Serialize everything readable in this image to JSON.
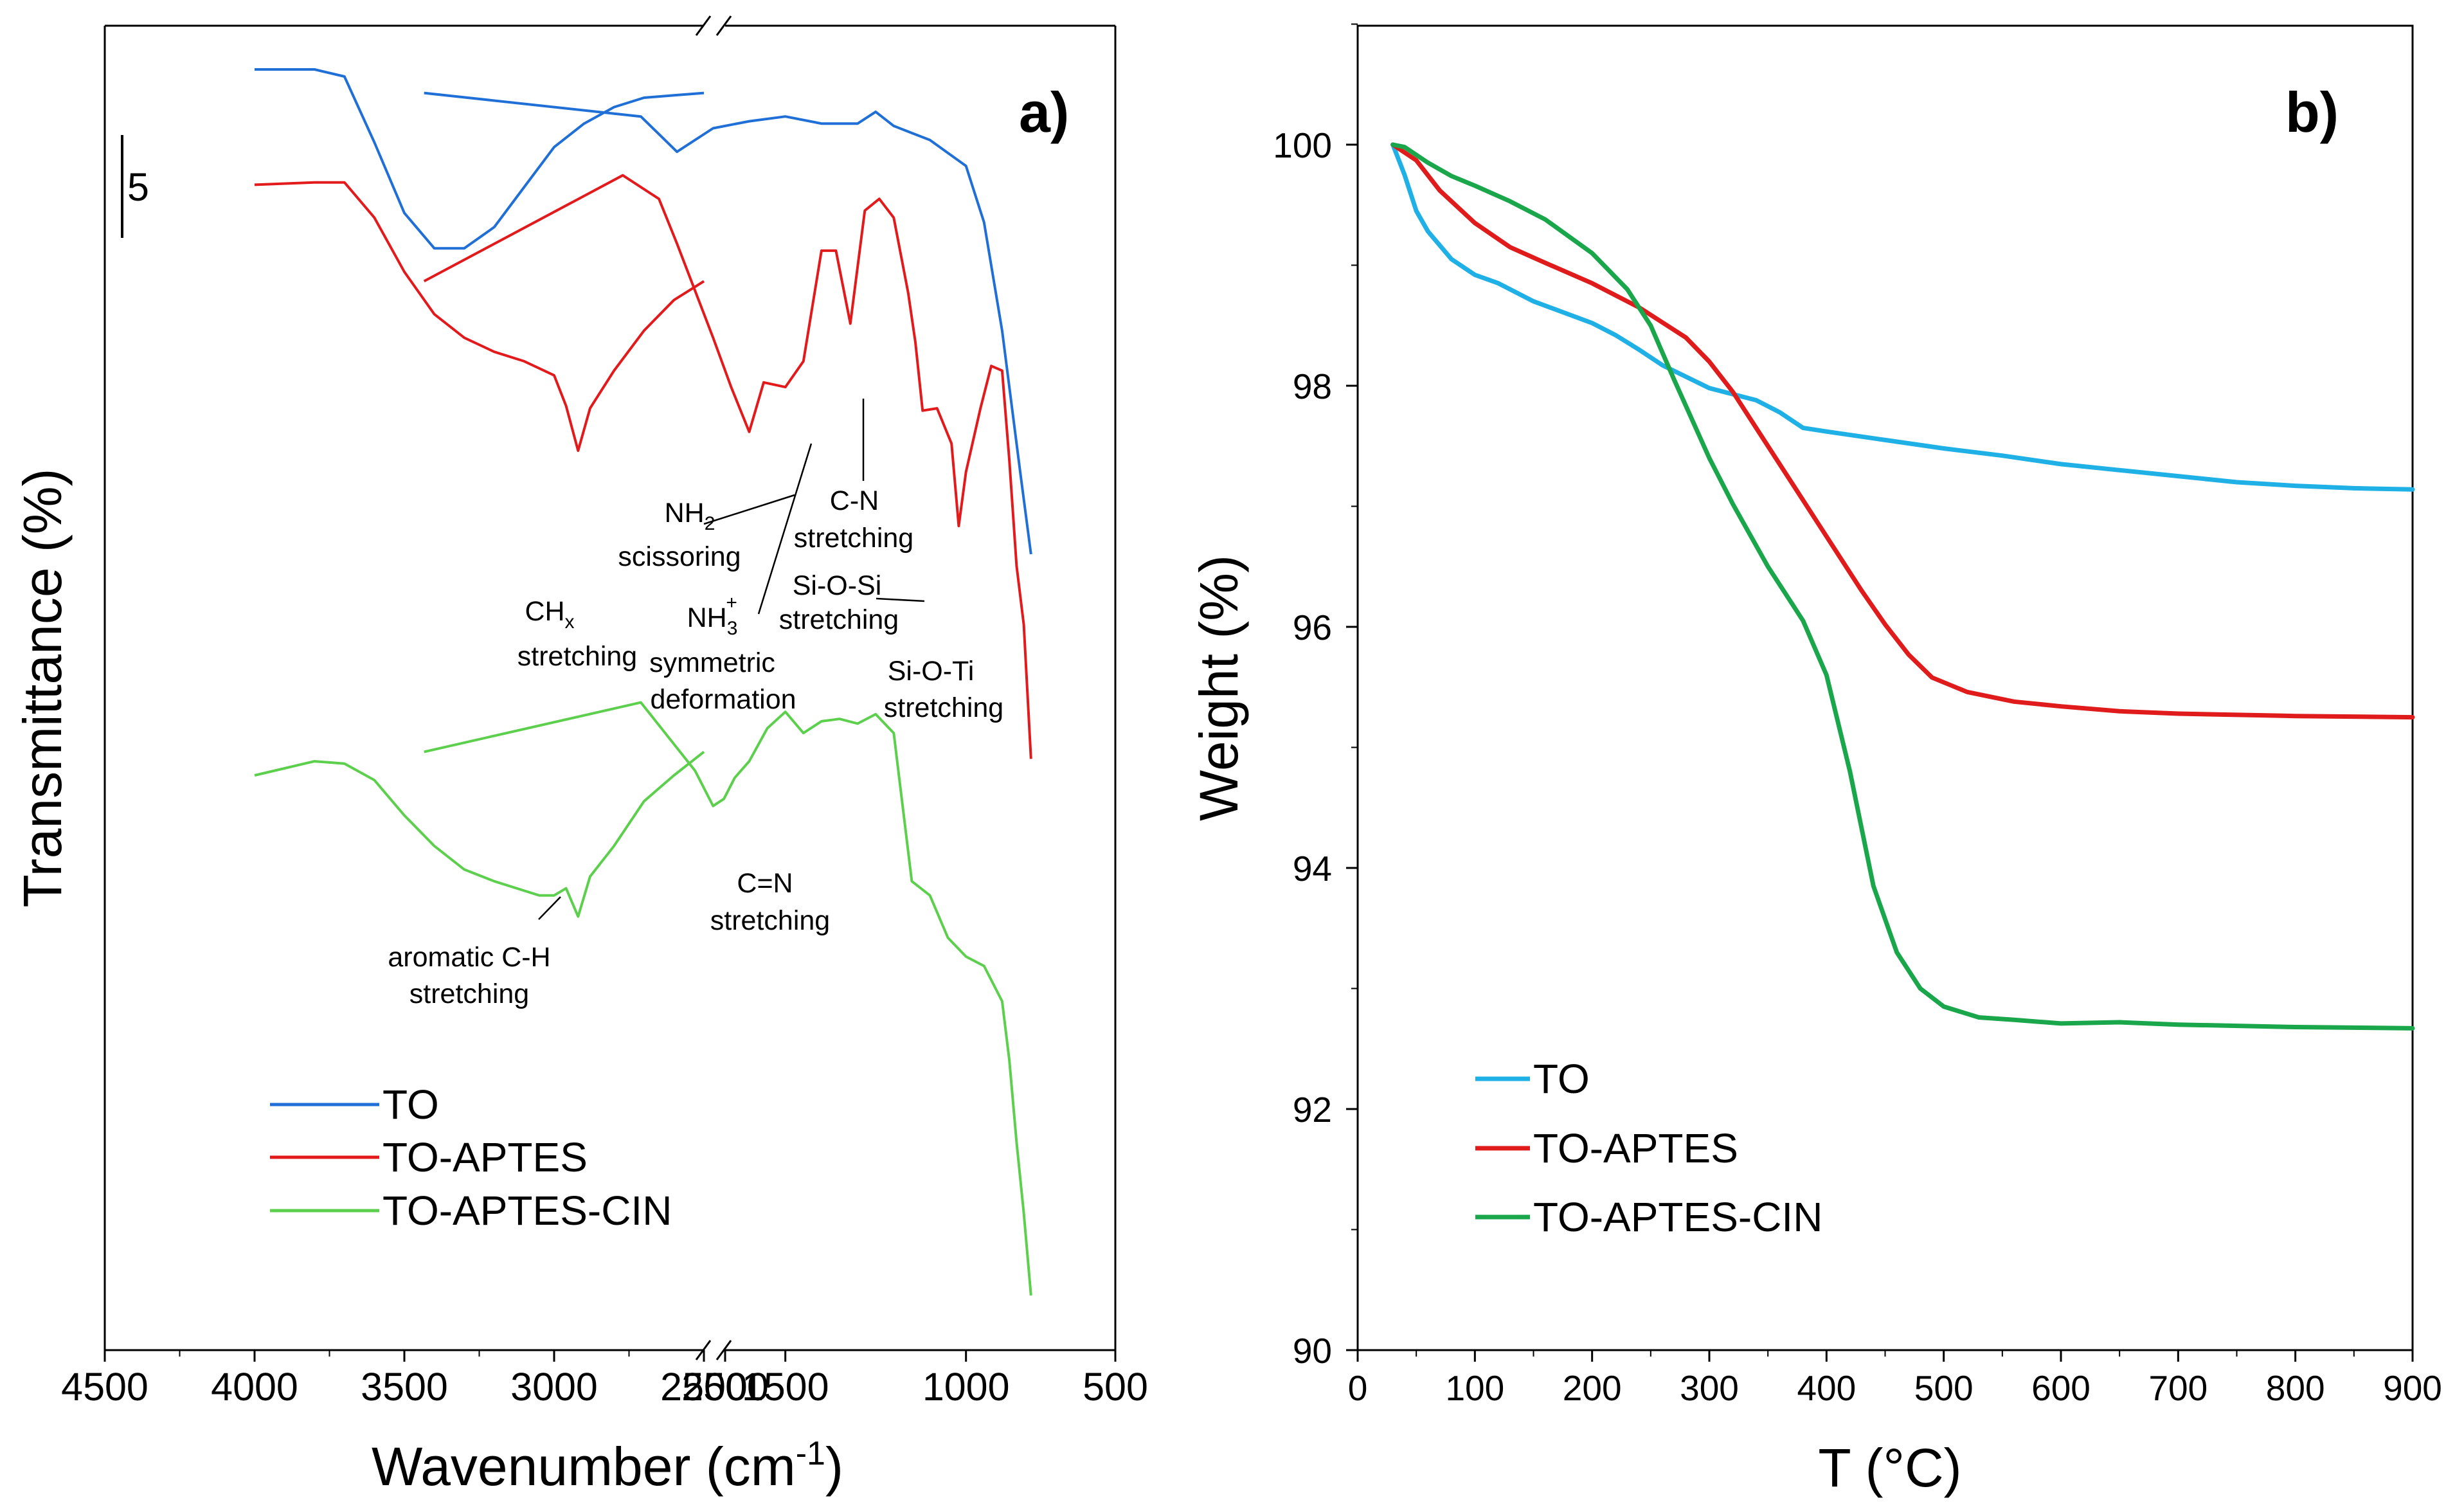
{
  "figure": {
    "panel_a_label": "a)",
    "panel_b_label": "b)"
  },
  "chart_data": [
    {
      "panel": "a",
      "type": "line",
      "title": "",
      "xlabel": "Wavenumber (cm",
      "xlabel_sup": "-1",
      "xlabel_end": ")",
      "ylabel": "Transmittance (%)",
      "x_reversed": true,
      "x_break": true,
      "x_ranges": [
        [
          4500,
          2500
        ],
        [
          2500,
          500
        ]
      ],
      "x_ticks": [
        "4500",
        "4000",
        "3500",
        "3000",
        "2500",
        "2500",
        "1500",
        "1000",
        "500"
      ],
      "scale_bar_label": "5",
      "series": [
        {
          "name": "TO",
          "color": "#1f6fd6",
          "x": [
            4000,
            3800,
            3700,
            3600,
            3500,
            3400,
            3300,
            3200,
            3100,
            3000,
            2900,
            2800,
            2700,
            2600,
            2500,
            2500,
            1900,
            1800,
            1700,
            1600,
            1500,
            1400,
            1300,
            1250,
            1200,
            1150,
            1100,
            1000,
            950,
            900,
            850,
            820
          ],
          "y": [
            50.6,
            50.6,
            50.3,
            47.5,
            44.5,
            43.0,
            43.0,
            43.9,
            45.6,
            47.3,
            48.3,
            49.0,
            49.4,
            49.5,
            49.6,
            49.6,
            48.6,
            47.1,
            48.1,
            48.4,
            48.6,
            48.3,
            48.3,
            48.8,
            48.2,
            47.9,
            47.6,
            46.5,
            44.1,
            39.5,
            33.5,
            30.0
          ]
        },
        {
          "name": "TO-APTES",
          "color": "#e31a1c",
          "x": [
            4000,
            3800,
            3700,
            3600,
            3500,
            3400,
            3300,
            3200,
            3100,
            3000,
            2960,
            2920,
            2880,
            2860,
            2800,
            2700,
            2600,
            2500,
            2500,
            1950,
            1850,
            1800,
            1700,
            1650,
            1600,
            1560,
            1500,
            1450,
            1400,
            1360,
            1320,
            1280,
            1240,
            1200,
            1160,
            1140,
            1120,
            1080,
            1040,
            1020,
            1000,
            960,
            930,
            900,
            880,
            860,
            840,
            820
          ],
          "y": [
            45.7,
            45.8,
            45.8,
            44.3,
            42.0,
            40.2,
            39.2,
            38.6,
            38.2,
            37.6,
            36.3,
            34.4,
            36.2,
            36.6,
            37.8,
            39.5,
            40.8,
            41.6,
            41.6,
            46.1,
            45.1,
            43.2,
            39.2,
            37.1,
            35.2,
            37.3,
            37.1,
            38.2,
            42.9,
            42.9,
            39.8,
            44.6,
            45.1,
            44.3,
            41.1,
            39.0,
            36.1,
            36.2,
            34.7,
            31.2,
            33.5,
            36.2,
            38.0,
            37.8,
            34.0,
            29.5,
            27.0,
            21.3
          ]
        },
        {
          "name": "TO-APTES-CIN",
          "color": "#5ccf4c",
          "x": [
            4000,
            3800,
            3700,
            3600,
            3500,
            3400,
            3300,
            3200,
            3100,
            3050,
            3000,
            2960,
            2920,
            2880,
            2800,
            2700,
            2600,
            2500,
            2500,
            1900,
            1750,
            1700,
            1670,
            1640,
            1600,
            1550,
            1500,
            1450,
            1400,
            1350,
            1300,
            1250,
            1200,
            1150,
            1100,
            1050,
            1000,
            950,
            900,
            880,
            860,
            840,
            820
          ],
          "y": [
            20.6,
            21.2,
            21.1,
            20.4,
            18.9,
            17.6,
            16.6,
            16.1,
            15.7,
            15.5,
            15.5,
            15.8,
            14.6,
            16.3,
            17.6,
            19.5,
            20.6,
            21.6,
            21.6,
            23.7,
            20.8,
            19.3,
            19.6,
            20.5,
            21.2,
            22.6,
            23.3,
            22.4,
            22.9,
            23.0,
            22.8,
            23.2,
            22.4,
            16.1,
            15.5,
            13.7,
            12.9,
            12.5,
            11.0,
            8.5,
            5.0,
            2.0,
            -1.5
          ]
        }
      ],
      "annotations": [
        {
          "text": [
            "CH",
            "x",
            " stretching"
          ],
          "id": "chx"
        },
        {
          "text": [
            "NH",
            "2",
            "scissoring"
          ],
          "id": "nh2"
        },
        {
          "text": [
            "C-N",
            "stretching"
          ],
          "id": "cn"
        },
        {
          "text": [
            "NH",
            "3",
            "+",
            "symmetric",
            "deformation"
          ],
          "id": "nh3"
        },
        {
          "text": [
            "Si-O-Si",
            "stretching"
          ],
          "id": "siosi"
        },
        {
          "text": [
            "Si-O-Ti",
            "stretching"
          ],
          "id": "sioti"
        },
        {
          "text": [
            "C=N",
            "stretching"
          ],
          "id": "cen"
        },
        {
          "text": [
            "aromatic C-H",
            "stretching"
          ],
          "id": "arch"
        }
      ]
    },
    {
      "panel": "b",
      "type": "line",
      "title": "",
      "xlabel": "T (°C)",
      "ylabel": "Weight (%)",
      "xlim": [
        0,
        900
      ],
      "ylim": [
        90,
        101
      ],
      "x_ticks": [
        0,
        100,
        200,
        300,
        400,
        500,
        600,
        700,
        800,
        900
      ],
      "y_ticks": [
        90,
        92,
        94,
        96,
        98,
        100
      ],
      "series": [
        {
          "name": "TO",
          "color": "#1fb0e6",
          "x": [
            30,
            40,
            50,
            60,
            80,
            100,
            120,
            150,
            200,
            220,
            240,
            260,
            300,
            340,
            360,
            380,
            400,
            450,
            500,
            550,
            600,
            650,
            700,
            750,
            800,
            850,
            900
          ],
          "y": [
            100,
            99.75,
            99.45,
            99.28,
            99.05,
            98.92,
            98.85,
            98.7,
            98.52,
            98.42,
            98.3,
            98.17,
            97.98,
            97.88,
            97.78,
            97.65,
            97.62,
            97.55,
            97.48,
            97.42,
            97.35,
            97.3,
            97.25,
            97.2,
            97.17,
            97.15,
            97.14
          ]
        },
        {
          "name": "TO-APTES",
          "color": "#e01b1b",
          "x": [
            30,
            50,
            70,
            100,
            130,
            160,
            200,
            240,
            280,
            300,
            320,
            350,
            380,
            400,
            430,
            450,
            470,
            490,
            520,
            560,
            600,
            650,
            700,
            800,
            900
          ],
          "y": [
            100,
            99.87,
            99.62,
            99.35,
            99.15,
            99.02,
            98.85,
            98.65,
            98.4,
            98.2,
            97.95,
            97.5,
            97.05,
            96.75,
            96.3,
            96.02,
            95.77,
            95.58,
            95.46,
            95.38,
            95.34,
            95.3,
            95.28,
            95.26,
            95.25
          ]
        },
        {
          "name": "TO-APTES-CIN",
          "color": "#1aa64b",
          "x": [
            30,
            40,
            60,
            80,
            100,
            130,
            160,
            200,
            230,
            250,
            270,
            300,
            320,
            350,
            380,
            400,
            420,
            440,
            460,
            480,
            500,
            530,
            560,
            600,
            650,
            700,
            800,
            900
          ],
          "y": [
            100,
            99.98,
            99.85,
            99.74,
            99.66,
            99.53,
            99.38,
            99.1,
            98.8,
            98.5,
            98.05,
            97.4,
            97.02,
            96.5,
            96.05,
            95.6,
            94.8,
            93.85,
            93.3,
            93.0,
            92.85,
            92.76,
            92.74,
            92.71,
            92.72,
            92.7,
            92.68,
            92.67
          ]
        }
      ]
    }
  ]
}
